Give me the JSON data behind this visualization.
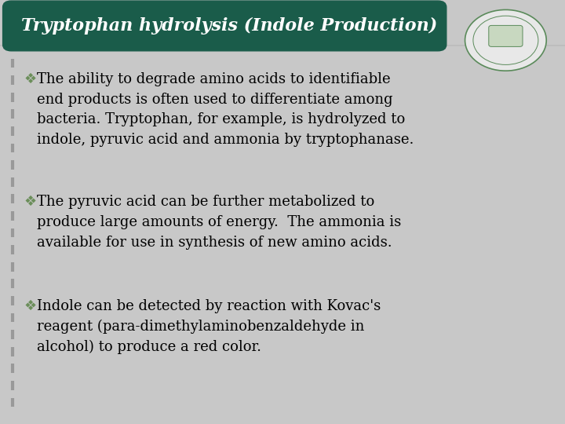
{
  "title": "Tryptophan hydrolysis (Indole Production)",
  "title_bg_color": "#1a5c4a",
  "title_text_color": "#ffffff",
  "bg_color": "#c8c8c8",
  "content_bg_color": "#efefef",
  "bullet_color": "#6b8e5a",
  "text_color": "#000000",
  "paragraphs": [
    "The ability to degrade amino acids to identifiable\nend products is often used to differentiate among\nbacteria. Tryptophan, for example, is hydrolyzed to\nindole, pyruvic acid and ammonia by tryptophanase.",
    "The pyruvic acid can be further metabolized to\nproduce large amounts of energy.  The ammonia is\navailable for use in synthesis of new amino acids.",
    "Indole can be detected by reaction with Kovac's\nreagent (para-dimethylaminobenzaldehyde in\nalcohol) to produce a red color."
  ],
  "font_size": 13.0,
  "title_font_size": 16
}
